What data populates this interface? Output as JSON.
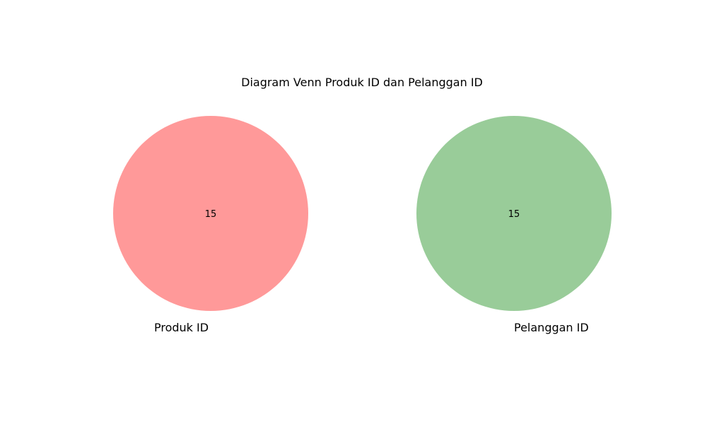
{
  "diagram": {
    "title": "Diagram Venn Produk ID dan Pelanggan ID",
    "sets": [
      {
        "label": "Produk ID",
        "count": "15",
        "color": "#ff9999"
      },
      {
        "label": "Pelanggan ID",
        "count": "15",
        "color": "#99cc99"
      }
    ]
  }
}
